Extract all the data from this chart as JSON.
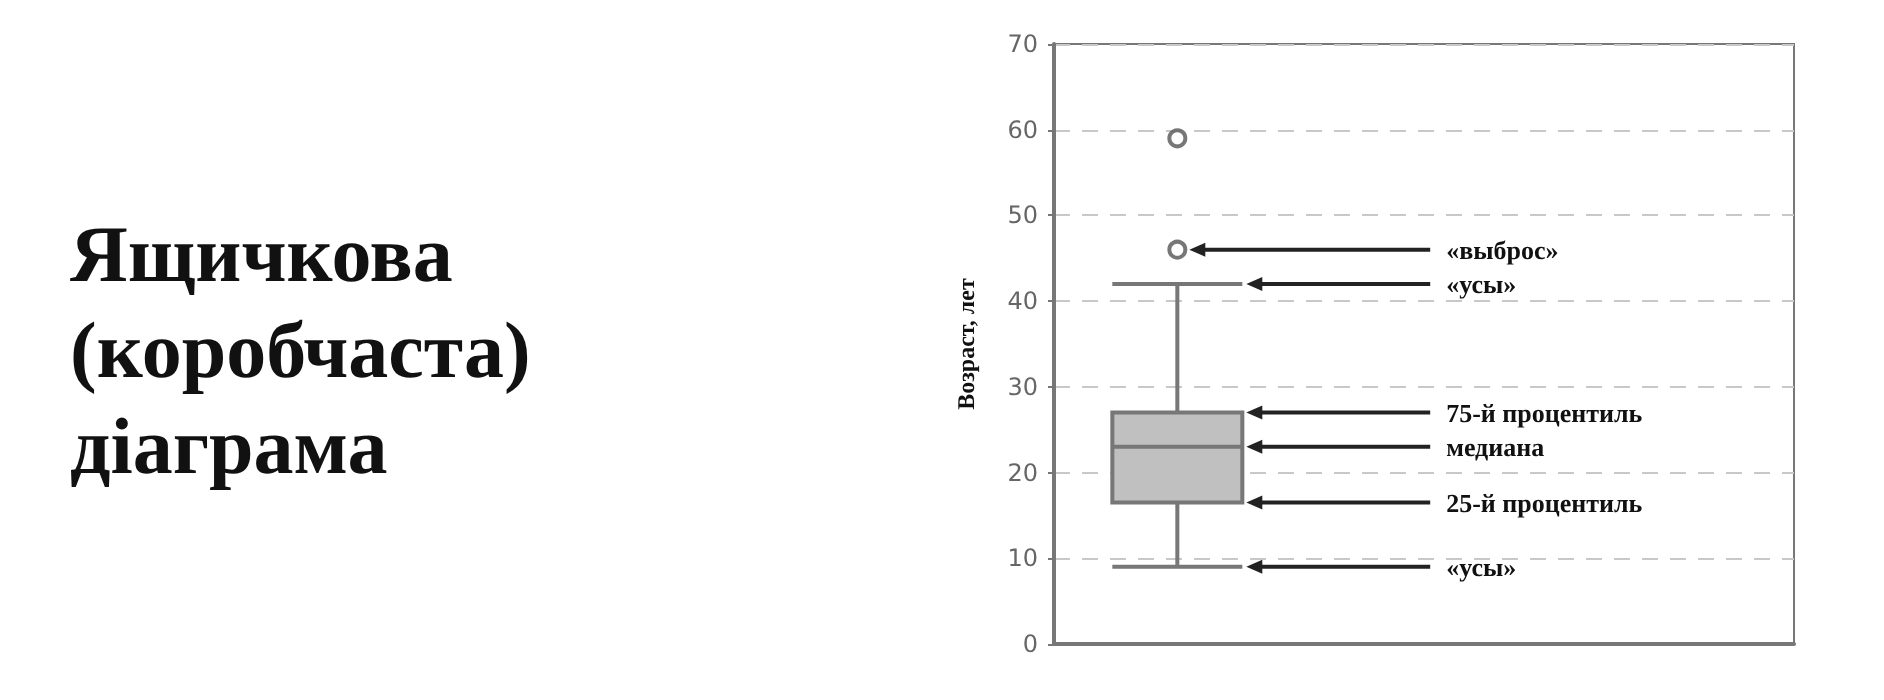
{
  "chart_data": {
    "type": "box",
    "title": "Ящичкова (коробчаста) діаграма",
    "ylabel": "Возраст, лет",
    "categories": [
      null
    ],
    "boxes": [
      {
        "low": 9,
        "q1": 16.5,
        "median": 23,
        "q3": 27,
        "high": 42,
        "outliers": [
          46,
          59
        ]
      }
    ],
    "color": "#c0c0c0",
    "ylim": [
      0,
      70
    ],
    "yticks": [
      0,
      10,
      20,
      30,
      40,
      50,
      60,
      70
    ],
    "grid": "y",
    "annotations": [
      "«выброс»",
      "«усы»",
      "75-й процентиль",
      "медиана",
      "25-й процентиль",
      "«усы»"
    ]
  }
}
